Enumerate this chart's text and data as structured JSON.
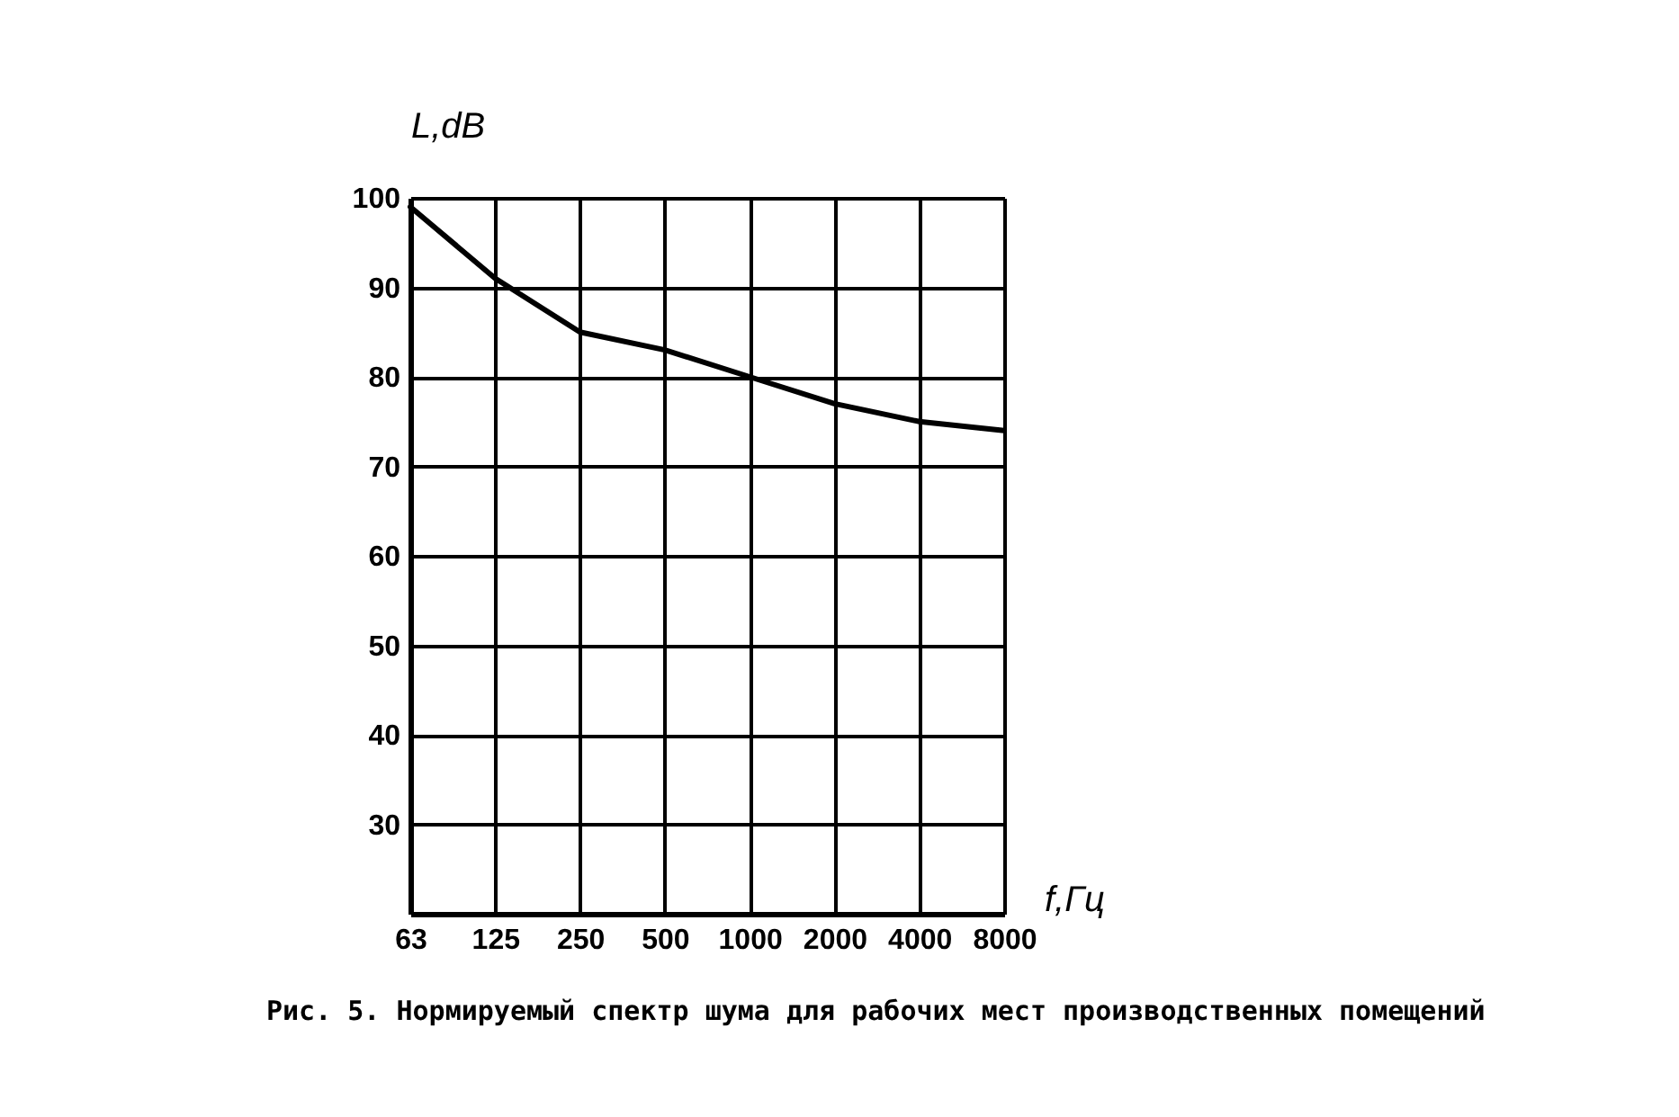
{
  "chart_data": {
    "type": "line",
    "xlabel": "f,Гц",
    "ylabel": "L,dB",
    "categories": [
      "63",
      "125",
      "250",
      "500",
      "1000",
      "2000",
      "4000",
      "8000"
    ],
    "series": [
      {
        "color": "#000000",
        "values": [
          99,
          91,
          85,
          83,
          80,
          77,
          75,
          74
        ]
      }
    ],
    "ylim": [
      20,
      100
    ],
    "yticks": [
      {
        "value": 20,
        "label": null
      },
      30,
      40,
      50,
      60,
      70,
      80,
      90,
      100
    ],
    "grid": true,
    "line_style": "solid",
    "annotations": [
      "Рис. 5. Нормируемый спектр шума для рабочих мест производственных помещений"
    ]
  }
}
